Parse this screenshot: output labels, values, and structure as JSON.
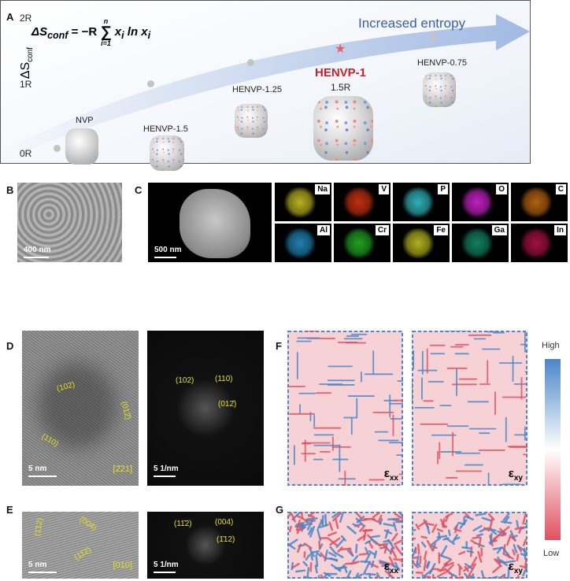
{
  "panels": {
    "A": "A",
    "B": "B",
    "C": "C",
    "D": "D",
    "E": "E",
    "F": "F",
    "G": "G"
  },
  "panelA": {
    "y_axis_label": "ΔS",
    "y_axis_sub": "conf",
    "y_ticks": [
      "2R",
      "1R",
      "0R"
    ],
    "formula": {
      "lhs": "ΔS",
      "lhs_sub": "conf",
      "rhs": "= −R",
      "sum_top": "n",
      "sum_bottom": "i=1",
      "term": "x",
      "term_sub": "i",
      "ln": " ln x",
      "ln_sub": "i"
    },
    "arrow_label": "Increased entropy",
    "samples": [
      {
        "name": "NVP",
        "entropy": "0R"
      },
      {
        "name": "HENVP-1.5",
        "entropy": "~0.95R"
      },
      {
        "name": "HENVP-1.25",
        "entropy": "~1.27R"
      },
      {
        "name": "HENVP-1",
        "entropy": "1.5R",
        "highlight": true
      },
      {
        "name": "HENVP-0.75",
        "entropy": "~1.67R"
      }
    ],
    "highlight_value": "1.5R",
    "colors": {
      "highlight": "#c8202a",
      "arrow": "#7fa0d8",
      "star": "#e06070"
    }
  },
  "panelB": {
    "scale": "400 nm"
  },
  "panelC": {
    "scale": "500 nm",
    "maps": [
      {
        "el": "Na",
        "color": "#b8b020"
      },
      {
        "el": "V",
        "color": "#c03010"
      },
      {
        "el": "P",
        "color": "#30b0b8"
      },
      {
        "el": "O",
        "color": "#c020c0"
      },
      {
        "el": "C",
        "color": "#b06010"
      },
      {
        "el": "Al",
        "color": "#2080b0"
      },
      {
        "el": "Cr",
        "color": "#20a020"
      },
      {
        "el": "Fe",
        "color": "#b0b020"
      },
      {
        "el": "Ga",
        "color": "#108060"
      },
      {
        "el": "In",
        "color": "#a01040"
      }
    ]
  },
  "panelD": {
    "hr_scale": "5 nm",
    "zone": "[2̄21]",
    "fft_scale": "5 1/nm",
    "planes": [
      "(102)",
      "(110)",
      "(012̄)"
    ],
    "fft_planes": [
      "(102)",
      "(110)",
      "(012̄)"
    ]
  },
  "panelE": {
    "hr_scale": "5 nm",
    "zone": "[010]",
    "fft_scale": "5 1/nm",
    "planes": [
      "(1̄12)",
      "(004)",
      "(11̄2)"
    ],
    "fft_planes": [
      "(11̄2)",
      "(004)",
      "(1̄12)"
    ]
  },
  "strain": {
    "xx": "ε",
    "xx_sub": "xx",
    "xy": "ε",
    "xy_sub": "xy"
  },
  "colorbar": {
    "high": "High",
    "low": "Low",
    "colors": [
      "#4a86c8",
      "#ffffff",
      "#e05060"
    ]
  }
}
